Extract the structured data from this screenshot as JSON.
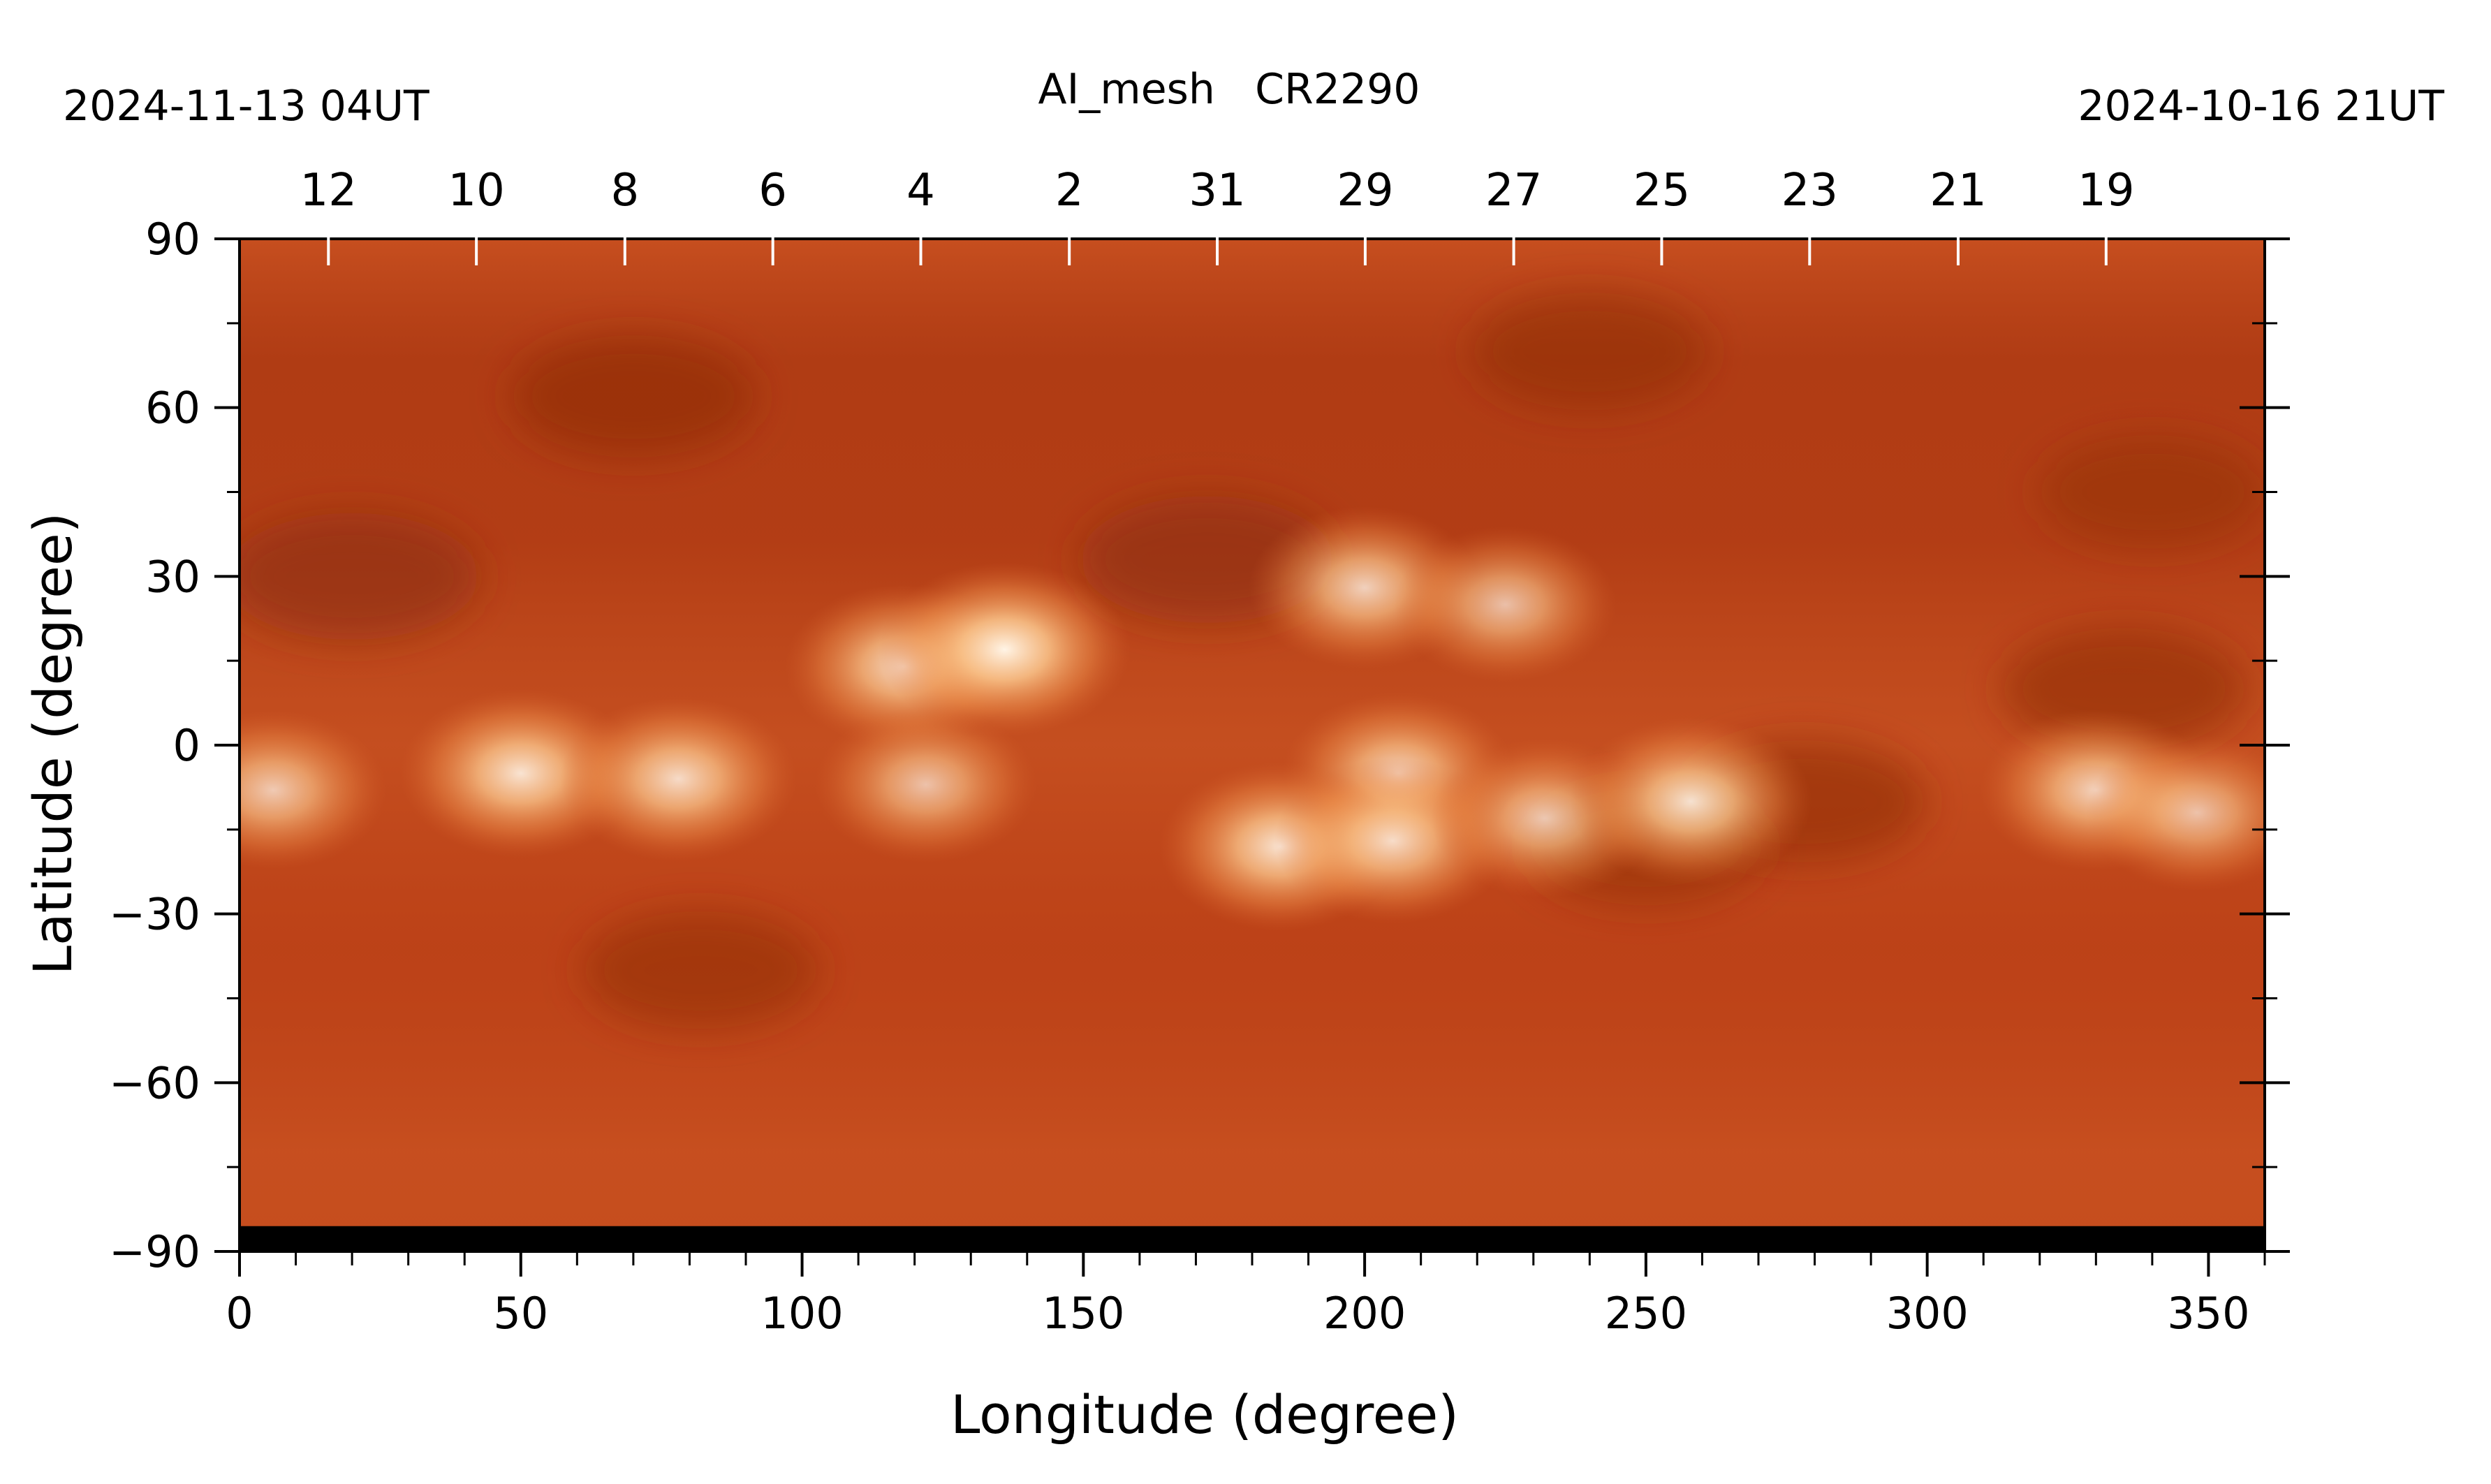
{
  "chart_data": {
    "type": "heatmap",
    "title": "AI_mesh   CR2290",
    "left_date": "2024-11-13 04UT",
    "right_date": "2024-10-16 21UT",
    "xlabel": "Longitude (degree)",
    "ylabel": "Latitude (degree)",
    "xlim": [
      0,
      360
    ],
    "ylim": [
      -90,
      90
    ],
    "x_ticks": [
      0,
      50,
      100,
      150,
      200,
      250,
      300,
      350
    ],
    "x_tick_labels": [
      "0",
      "50",
      "100",
      "150",
      "200",
      "250",
      "300",
      "350"
    ],
    "y_ticks": [
      90,
      60,
      30,
      0,
      -30,
      -60,
      -90
    ],
    "y_tick_labels": [
      "90",
      "60",
      "30",
      "0",
      "−30",
      "−60",
      "−90"
    ],
    "top_day_labels": [
      "12",
      "10",
      "8",
      "6",
      "4",
      "2",
      "31",
      "29",
      "27",
      "25",
      "23",
      "21",
      "19"
    ],
    "top_day_longitudes": [
      15.8,
      42.1,
      68.5,
      94.8,
      121.1,
      147.5,
      173.8,
      200.1,
      226.5,
      252.8,
      279.1,
      305.5,
      331.8
    ],
    "grid": false,
    "colormap": [
      "#8a2a0c",
      "#b8401a",
      "#d9662e",
      "#f19550",
      "#fcc88e",
      "#fff4e6"
    ],
    "background_color": "#bd4217",
    "bright_regions": [
      {
        "lon": 50,
        "lat": -5,
        "intensity": 0.9
      },
      {
        "lon": 78,
        "lat": -6,
        "intensity": 0.85
      },
      {
        "lon": 118,
        "lat": 14,
        "intensity": 0.85
      },
      {
        "lon": 136,
        "lat": 17,
        "intensity": 1.0
      },
      {
        "lon": 200,
        "lat": 28,
        "intensity": 0.8
      },
      {
        "lon": 206,
        "lat": -5,
        "intensity": 0.8
      },
      {
        "lon": 185,
        "lat": -18,
        "intensity": 0.9
      },
      {
        "lon": 205,
        "lat": -17,
        "intensity": 0.85
      },
      {
        "lon": 225,
        "lat": 25,
        "intensity": 0.7
      },
      {
        "lon": 232,
        "lat": -13,
        "intensity": 0.75
      },
      {
        "lon": 258,
        "lat": -10,
        "intensity": 0.9
      },
      {
        "lon": 330,
        "lat": -8,
        "intensity": 0.8
      },
      {
        "lon": 348,
        "lat": -12,
        "intensity": 0.7
      },
      {
        "lon": 6,
        "lat": -8,
        "intensity": 0.75
      },
      {
        "lon": 122,
        "lat": -7,
        "intensity": 0.7
      }
    ],
    "dark_regions": [
      {
        "lon": 20,
        "lat": 30,
        "intensity": 0.7
      },
      {
        "lon": 70,
        "lat": 62,
        "intensity": 0.6
      },
      {
        "lon": 172,
        "lat": 33,
        "intensity": 0.7
      },
      {
        "lon": 240,
        "lat": 70,
        "intensity": 0.5
      },
      {
        "lon": 278,
        "lat": -10,
        "intensity": 0.6
      },
      {
        "lon": 335,
        "lat": 10,
        "intensity": 0.6
      },
      {
        "lon": 82,
        "lat": -40,
        "intensity": 0.5
      },
      {
        "lon": 250,
        "lat": -18,
        "intensity": 0.5
      },
      {
        "lon": 340,
        "lat": 45,
        "intensity": 0.4
      }
    ]
  }
}
